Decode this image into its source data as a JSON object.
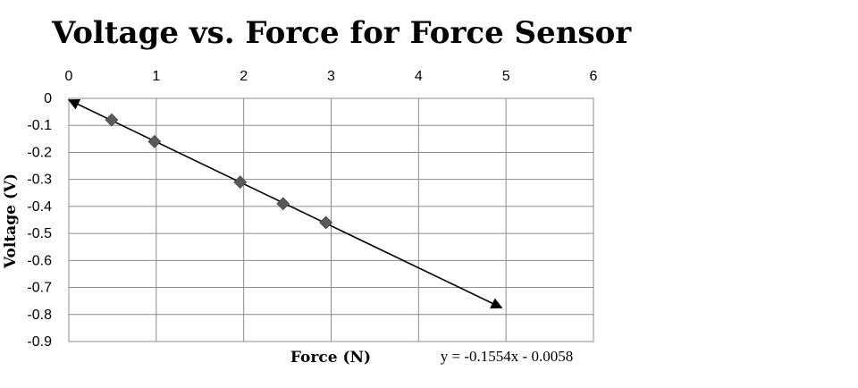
{
  "chart_data": {
    "type": "scatter",
    "title": "Voltage vs. Force for Force Sensor",
    "xlabel": "Force (N)",
    "ylabel": "Voltage (V)",
    "xlim": [
      0,
      6
    ],
    "ylim": [
      -0.9,
      0
    ],
    "x_ticks": [
      "0",
      "1",
      "2",
      "3",
      "4",
      "5",
      "6"
    ],
    "y_ticks": [
      "0",
      "-0.1",
      "-0.2",
      "-0.3",
      "-0.4",
      "-0.5",
      "-0.6",
      "-0.7",
      "-0.8",
      "-0.9"
    ],
    "x_axis_position": "top",
    "grid": true,
    "legend": "none",
    "series": [
      {
        "x": [
          0.49,
          0.98,
          1.96,
          2.45,
          2.94
        ],
        "y": [
          -0.08,
          -0.16,
          -0.31,
          -0.39,
          -0.46
        ],
        "marker": "diamond",
        "color": "#595959"
      }
    ],
    "trendline": {
      "slope": -0.1554,
      "intercept": -0.0058,
      "x_range": [
        0,
        4.95
      ],
      "arrows": "both",
      "color": "#000000"
    },
    "equation_label": "y = -0.1554x - 0.0058"
  }
}
